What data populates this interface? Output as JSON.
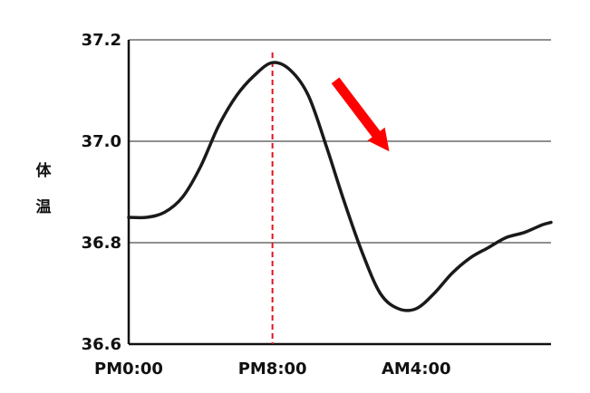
{
  "chart_data": {
    "type": "line",
    "ylabel": "体温",
    "xlabel": "",
    "title": "",
    "ylim": [
      36.6,
      37.2
    ],
    "yticks": [
      "36.6",
      "36.8",
      "37.0",
      "37.2"
    ],
    "xticks": [
      {
        "label": "PM0:00",
        "x": 0
      },
      {
        "label": "PM8:00",
        "x": 8
      },
      {
        "label": "AM4:00",
        "x": 16
      }
    ],
    "xlim": [
      0,
      23.5
    ],
    "grid": "horizontal",
    "series": [
      {
        "color": "#1a1a1a",
        "x": [
          0,
          1,
          2,
          3,
          4,
          5,
          6,
          7,
          8,
          9,
          10,
          11,
          12,
          13,
          14,
          15,
          16,
          17,
          18,
          19,
          20,
          21,
          22,
          23,
          23.5
        ],
        "y": [
          36.85,
          36.85,
          36.86,
          36.89,
          36.95,
          37.03,
          37.09,
          37.13,
          37.155,
          37.14,
          37.09,
          36.99,
          36.88,
          36.78,
          36.7,
          36.67,
          36.67,
          36.7,
          36.74,
          36.77,
          36.79,
          36.81,
          36.82,
          36.835,
          36.84
        ]
      }
    ],
    "annotations": [
      {
        "type": "vertical-line",
        "x": 8,
        "color": "#e0141e",
        "style": "dashed"
      },
      {
        "type": "arrow",
        "from": [
          11.5,
          37.12
        ],
        "to": [
          14.5,
          36.98
        ],
        "color": "#ff0000"
      }
    ]
  }
}
